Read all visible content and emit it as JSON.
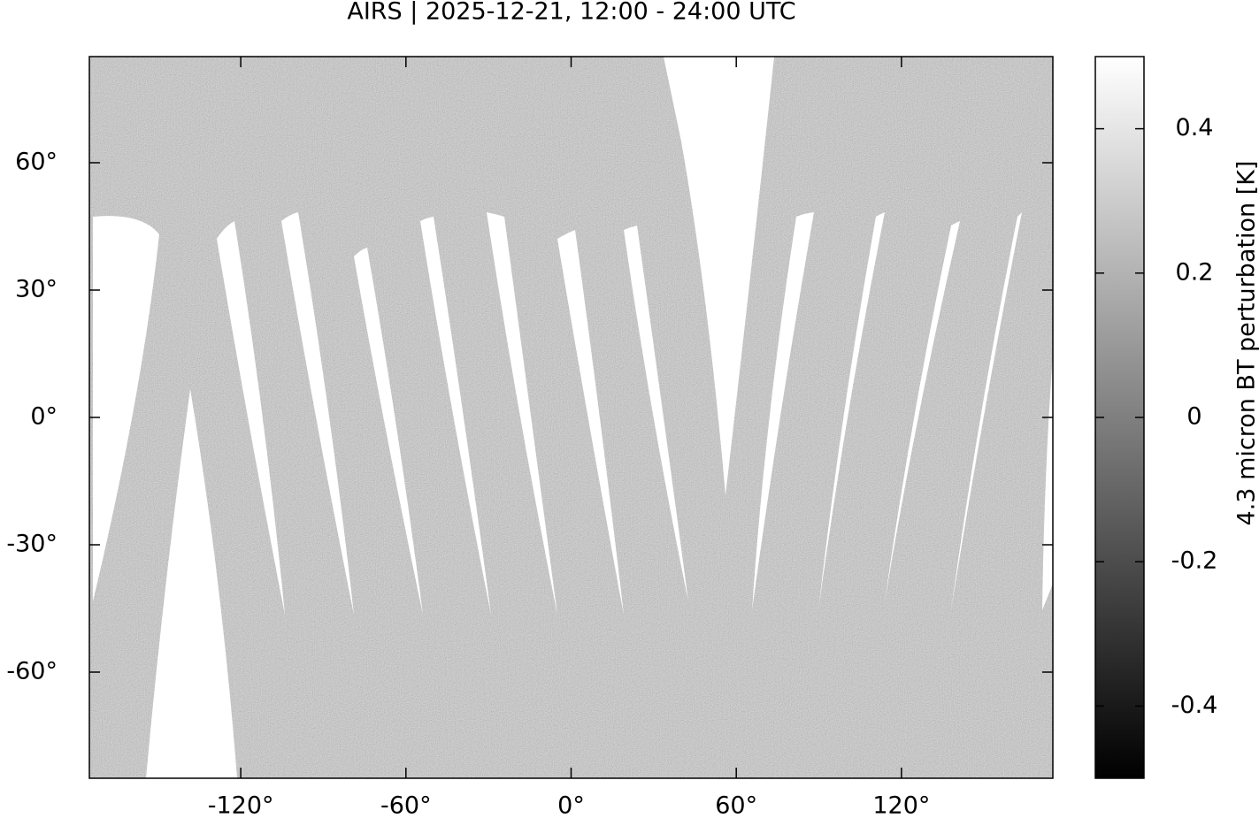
{
  "chart_data": {
    "type": "map",
    "title": "AIRS | 2025-12-21, 12:00 - 24:00 UTC",
    "xlim": [
      -175,
      175
    ],
    "ylim": [
      -85,
      85
    ],
    "xticks": [
      {
        "value": -120,
        "label": "-120°"
      },
      {
        "value": -60,
        "label": "-60°"
      },
      {
        "value": 0,
        "label": "0°"
      },
      {
        "value": 60,
        "label": "60°"
      },
      {
        "value": 120,
        "label": "120°"
      }
    ],
    "yticks": [
      {
        "value": 60,
        "label": "60°"
      },
      {
        "value": 30,
        "label": "30°"
      },
      {
        "value": 0,
        "label": "0°"
      },
      {
        "value": -30,
        "label": "-30°"
      },
      {
        "value": -60,
        "label": "-60°"
      }
    ],
    "colorbar": {
      "label": "4.3 micron BT perturbation [K]",
      "lim": [
        -0.5,
        0.5
      ],
      "ticks": [
        0.4,
        0.2,
        0,
        -0.2,
        -0.4
      ]
    }
  }
}
